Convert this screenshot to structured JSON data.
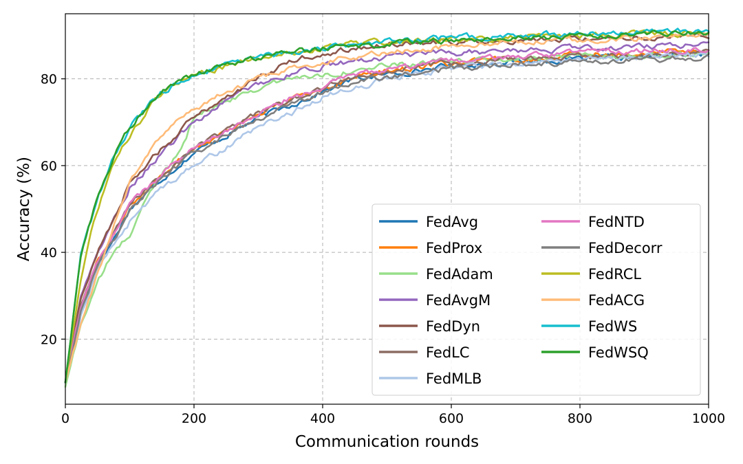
{
  "chart_data": {
    "type": "line",
    "title": "",
    "xlabel": "Communication rounds",
    "ylabel": "Accuracy (%)",
    "xlim": [
      0,
      1000
    ],
    "ylim": [
      5,
      95
    ],
    "xticks": [
      0,
      200,
      400,
      600,
      800,
      1000
    ],
    "yticks": [
      20,
      40,
      60,
      80
    ],
    "grid": true,
    "legend_position": "lower-right",
    "legend_columns": 2,
    "series": [
      {
        "name": "FedAvg",
        "color": "#1f77b4",
        "x": [
          0,
          25,
          50,
          75,
          100,
          150,
          200,
          250,
          300,
          350,
          400,
          450,
          500,
          600,
          700,
          800,
          900,
          1000
        ],
        "y": [
          10,
          27,
          37,
          43,
          50,
          57,
          63,
          67,
          71,
          74,
          77,
          80,
          81,
          83,
          84,
          84.5,
          85,
          86
        ]
      },
      {
        "name": "FedProx",
        "color": "#ff7f0e",
        "x": [
          0,
          25,
          50,
          75,
          100,
          150,
          200,
          250,
          300,
          350,
          400,
          450,
          500,
          600,
          700,
          800,
          900,
          1000
        ],
        "y": [
          10,
          28,
          38,
          44,
          51,
          58,
          64,
          68,
          72,
          75,
          78,
          80.5,
          82,
          83.5,
          84.5,
          85.5,
          86,
          86.5
        ]
      },
      {
        "name": "FedAdam",
        "color": "#98df8a",
        "x": [
          0,
          25,
          50,
          75,
          100,
          125,
          150,
          175,
          200,
          250,
          300,
          350,
          400,
          450,
          500,
          600,
          700,
          800,
          900,
          1000
        ],
        "y": [
          9,
          24,
          33,
          40,
          44,
          52,
          58,
          63,
          71,
          75,
          78,
          80,
          81,
          82,
          83,
          84,
          84.5,
          85,
          85.5,
          86
        ]
      },
      {
        "name": "FedAvgM",
        "color": "#9467bd",
        "x": [
          0,
          25,
          50,
          75,
          100,
          150,
          200,
          250,
          300,
          350,
          400,
          450,
          500,
          600,
          700,
          800,
          900,
          1000
        ],
        "y": [
          10,
          30,
          40,
          47,
          55,
          63,
          70,
          75,
          79,
          81,
          83,
          84,
          85,
          86,
          86.5,
          87,
          87.5,
          88
        ]
      },
      {
        "name": "FedDyn",
        "color": "#8c564b",
        "x": [
          0,
          25,
          50,
          75,
          100,
          150,
          200,
          250,
          300,
          350,
          400,
          450,
          500,
          600,
          700,
          800,
          900,
          1000
        ],
        "y": [
          10,
          30,
          40,
          48,
          56,
          64,
          71,
          76,
          80,
          84,
          86,
          87,
          88,
          88.5,
          89,
          89.5,
          89.5,
          90
        ]
      },
      {
        "name": "FedLC",
        "color": "#8c6d62",
        "x": [
          0,
          25,
          50,
          75,
          100,
          150,
          200,
          250,
          300,
          350,
          400,
          450,
          500,
          600,
          700,
          800,
          900,
          1000
        ],
        "y": [
          10,
          28,
          38,
          44,
          51,
          58,
          64,
          68,
          72,
          75,
          78,
          80.5,
          82,
          83.5,
          84.5,
          85,
          85.5,
          86
        ]
      },
      {
        "name": "FedMLB",
        "color": "#aec7e8",
        "x": [
          0,
          25,
          50,
          75,
          100,
          150,
          200,
          250,
          300,
          350,
          400,
          450,
          500,
          600,
          700,
          800,
          900,
          1000
        ],
        "y": [
          10,
          26,
          36,
          42,
          47,
          55,
          60,
          64,
          69,
          72,
          76,
          78,
          80,
          82.5,
          83.5,
          84.5,
          85,
          85.5
        ]
      },
      {
        "name": "FedNTD",
        "color": "#e377c2",
        "x": [
          0,
          25,
          50,
          75,
          100,
          150,
          200,
          250,
          300,
          350,
          400,
          450,
          500,
          600,
          700,
          800,
          900,
          1000
        ],
        "y": [
          10,
          28,
          38,
          44,
          51,
          58,
          64,
          68,
          72,
          75.5,
          78,
          81,
          82,
          84,
          85,
          86,
          86.5,
          87
        ]
      },
      {
        "name": "FedDecorr",
        "color": "#7f7f7f",
        "x": [
          0,
          25,
          50,
          75,
          100,
          150,
          200,
          250,
          300,
          350,
          400,
          450,
          500,
          600,
          700,
          800,
          900,
          1000
        ],
        "y": [
          10,
          27,
          37,
          43,
          50,
          57,
          63,
          67,
          71,
          74,
          77,
          79,
          80.5,
          82.5,
          83.5,
          84,
          84.5,
          85
        ]
      },
      {
        "name": "FedRCL",
        "color": "#bcbd22",
        "x": [
          0,
          25,
          50,
          75,
          100,
          150,
          200,
          250,
          300,
          350,
          400,
          450,
          500,
          600,
          700,
          800,
          900,
          1000
        ],
        "y": [
          10,
          35,
          50,
          60,
          67,
          77,
          81,
          83,
          85,
          86,
          87,
          88,
          88.5,
          89,
          89.5,
          90,
          90.5,
          90.5
        ]
      },
      {
        "name": "FedACG",
        "color": "#ffbb78",
        "x": [
          0,
          25,
          50,
          75,
          100,
          150,
          200,
          250,
          300,
          350,
          400,
          450,
          500,
          600,
          700,
          800,
          900,
          1000
        ],
        "y": [
          10,
          24,
          35,
          46,
          56,
          67,
          73,
          77,
          80,
          82,
          84,
          85,
          86,
          87.5,
          88.5,
          89,
          89.5,
          90
        ]
      },
      {
        "name": "FedWS",
        "color": "#17becf",
        "x": [
          0,
          25,
          50,
          75,
          100,
          150,
          200,
          250,
          300,
          350,
          400,
          450,
          500,
          600,
          700,
          800,
          900,
          1000
        ],
        "y": [
          10,
          40,
          52,
          62,
          69,
          77,
          81,
          83,
          85,
          86,
          87,
          88,
          88.5,
          89.5,
          90,
          90.5,
          91,
          91
        ]
      },
      {
        "name": "FedWSQ",
        "color": "#2ca02c",
        "x": [
          0,
          25,
          50,
          75,
          100,
          150,
          200,
          250,
          300,
          350,
          400,
          450,
          500,
          600,
          700,
          800,
          900,
          1000
        ],
        "y": [
          10,
          40,
          53,
          62,
          69,
          77,
          81,
          83,
          85,
          86,
          87,
          87.5,
          88,
          89,
          89.5,
          90,
          90.5,
          90.5
        ]
      }
    ]
  }
}
